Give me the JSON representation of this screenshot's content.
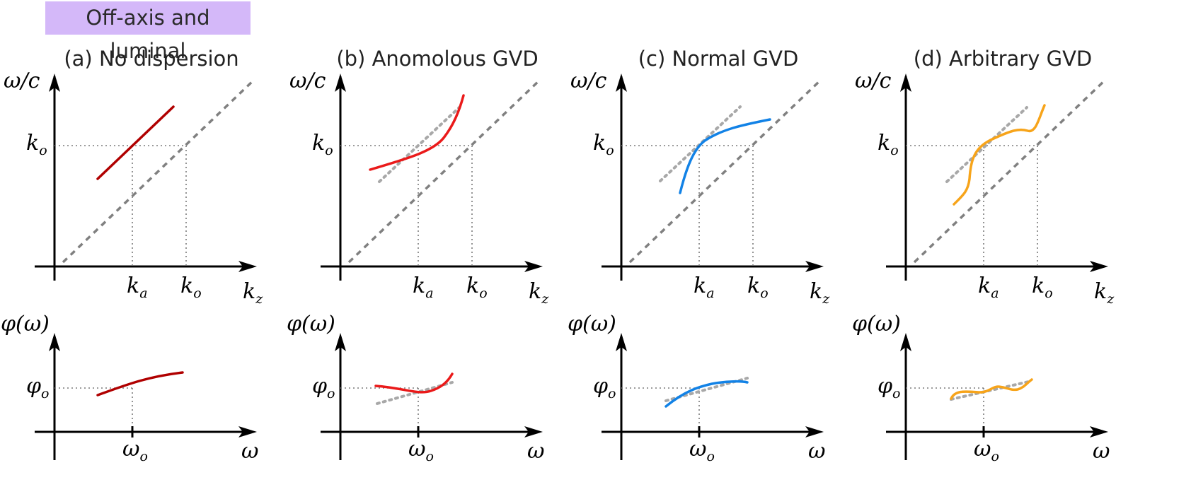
{
  "banner": {
    "text": "Off-axis and luminal",
    "color": "#d4b8f9"
  },
  "panels": [
    {
      "title": "(a) No dispersion",
      "color": "#b00000",
      "upper": {
        "y_label": [
          "ω/c",
          ""
        ],
        "y_tick": [
          "k",
          "o"
        ],
        "x_ticks": [
          [
            "k",
            "a"
          ],
          [
            "k",
            "o"
          ]
        ],
        "x_label": [
          "k",
          "z"
        ]
      },
      "lower": {
        "y_label": [
          "φ(ω)",
          ""
        ],
        "y_tick": [
          "φ",
          "o"
        ],
        "x_tick": [
          "ω",
          "o"
        ],
        "x_label": [
          "ω",
          ""
        ]
      }
    },
    {
      "title": "(b) Anomolous GVD",
      "color": "#ea1a1a",
      "upper": {
        "y_label": [
          "ω/c",
          ""
        ],
        "y_tick": [
          "k",
          "o"
        ],
        "x_ticks": [
          [
            "k",
            "a"
          ],
          [
            "k",
            "o"
          ]
        ],
        "x_label": [
          "k",
          "z"
        ]
      },
      "lower": {
        "y_label": [
          "φ(ω)",
          ""
        ],
        "y_tick": [
          "φ",
          "o"
        ],
        "x_tick": [
          "ω",
          "o"
        ],
        "x_label": [
          "ω",
          ""
        ]
      }
    },
    {
      "title": "(c) Normal GVD",
      "color": "#1282e6",
      "upper": {
        "y_label": [
          "ω/c",
          ""
        ],
        "y_tick": [
          "k",
          "o"
        ],
        "x_ticks": [
          [
            "k",
            "a"
          ],
          [
            "k",
            "o"
          ]
        ],
        "x_label": [
          "k",
          "z"
        ]
      },
      "lower": {
        "y_label": [
          "φ(ω)",
          ""
        ],
        "y_tick": [
          "φ",
          "o"
        ],
        "x_tick": [
          "ω",
          "o"
        ],
        "x_label": [
          "ω",
          ""
        ]
      }
    },
    {
      "title": "(d) Arbitrary GVD",
      "color": "#f7a41a",
      "upper": {
        "y_label": [
          "ω/c",
          ""
        ],
        "y_tick": [
          "k",
          "o"
        ],
        "x_ticks": [
          [
            "k",
            "a"
          ],
          [
            "k",
            "o"
          ]
        ],
        "x_label": [
          "k",
          "z"
        ]
      },
      "lower": {
        "y_label": [
          "φ(ω)",
          ""
        ],
        "y_tick": [
          "φ",
          "o"
        ],
        "x_tick": [
          "ω",
          "o"
        ],
        "x_label": [
          "ω",
          ""
        ]
      }
    }
  ]
}
